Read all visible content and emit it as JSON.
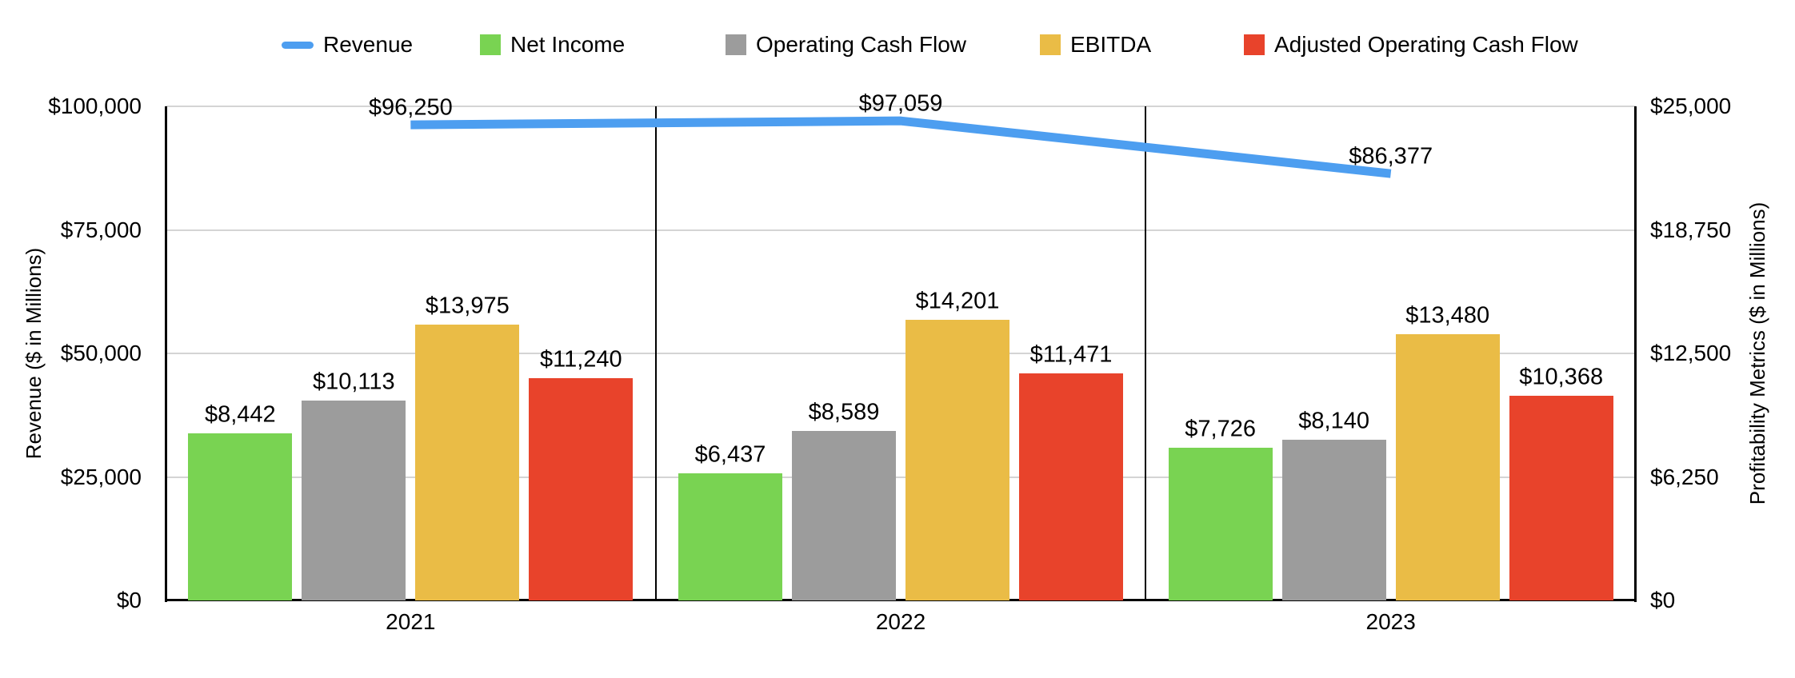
{
  "legend": [
    {
      "label": "Revenue",
      "color": "#4d9ef0",
      "marker": "line"
    },
    {
      "label": "Net Income",
      "color": "#79d352",
      "marker": "square"
    },
    {
      "label": "Operating Cash Flow",
      "color": "#9c9c9c",
      "marker": "square"
    },
    {
      "label": "EBITDA",
      "color": "#eabc46",
      "marker": "square"
    },
    {
      "label": "Adjusted Operating Cash Flow",
      "color": "#e8432b",
      "marker": "square"
    }
  ],
  "left_axis": {
    "title": "Revenue ($ in Millions)",
    "ticks": [
      "$100,000",
      "$75,000",
      "$50,000",
      "$25,000",
      "$0"
    ]
  },
  "right_axis": {
    "title": "Profitability Metrics ($ in Millions)",
    "ticks": [
      "$25,000",
      "$18,750",
      "$12,500",
      "$6,250",
      "$0"
    ]
  },
  "chart_data": {
    "type": "combo bar+line",
    "categories": [
      "2021",
      "2022",
      "2023"
    ],
    "series": [
      {
        "name": "Revenue",
        "type": "line",
        "axis": "left",
        "color": "#4d9ef0",
        "values": [
          96250,
          97059,
          86377
        ],
        "labels": [
          "$96,250",
          "$97,059",
          "$86,377"
        ]
      },
      {
        "name": "Net Income",
        "type": "bar",
        "axis": "right",
        "color": "#79d352",
        "values": [
          8442,
          6437,
          7726
        ],
        "labels": [
          "$8,442",
          "$6,437",
          "$7,726"
        ]
      },
      {
        "name": "Operating Cash Flow",
        "type": "bar",
        "axis": "right",
        "color": "#9c9c9c",
        "values": [
          10113,
          8589,
          8140
        ],
        "labels": [
          "$10,113",
          "$8,589",
          "$8,140"
        ]
      },
      {
        "name": "EBITDA",
        "type": "bar",
        "axis": "right",
        "color": "#eabc46",
        "values": [
          13975,
          14201,
          13480
        ],
        "labels": [
          "$13,975",
          "$14,201",
          "$13,480"
        ]
      },
      {
        "name": "Adjusted Operating Cash Flow",
        "type": "bar",
        "axis": "right",
        "color": "#e8432b",
        "values": [
          11240,
          11471,
          10368
        ],
        "labels": [
          "$11,240",
          "$11,471",
          "$10,368"
        ]
      }
    ],
    "left_ylim": [
      0,
      100000
    ],
    "right_ylim": [
      0,
      25000
    ],
    "grid": true,
    "legend_position": "top",
    "xlabel": "",
    "ylabel_left": "Revenue ($ in Millions)",
    "ylabel_right": "Profitability Metrics ($ in Millions)"
  }
}
